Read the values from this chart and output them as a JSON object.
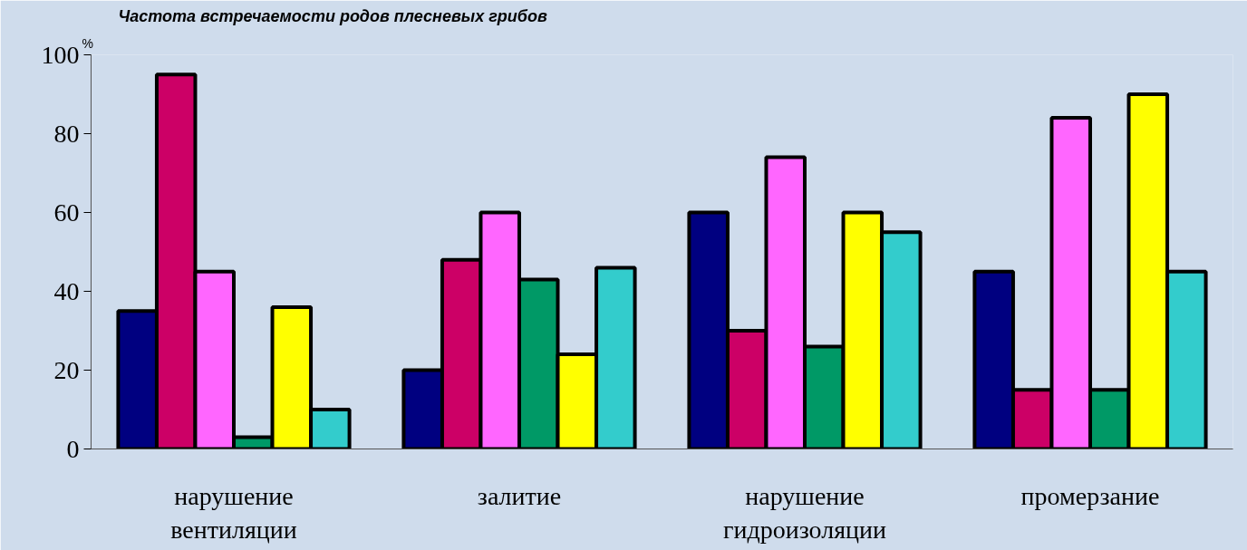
{
  "chart_data": {
    "type": "bar",
    "title": "Частота встречаемости родов плесневых грибов",
    "ylabel": "%",
    "categories": [
      "нарушение вентиляции",
      "залитие",
      "нарушение гидроизоляции",
      "промерзание"
    ],
    "series": [
      {
        "color": "#000080",
        "values": [
          35,
          20,
          60,
          45
        ]
      },
      {
        "color": "#cc0066",
        "values": [
          95,
          48,
          30,
          15
        ]
      },
      {
        "color": "#ff66ff",
        "values": [
          45,
          60,
          74,
          84
        ]
      },
      {
        "color": "#009966",
        "values": [
          3,
          43,
          26,
          15
        ]
      },
      {
        "color": "#ffff00",
        "values": [
          36,
          24,
          60,
          90
        ]
      },
      {
        "color": "#33cccc",
        "values": [
          10,
          46,
          55,
          45
        ]
      }
    ],
    "ylim": [
      0,
      100
    ],
    "yticks": [
      0,
      20,
      40,
      60,
      80,
      100
    ],
    "grid": false
  }
}
